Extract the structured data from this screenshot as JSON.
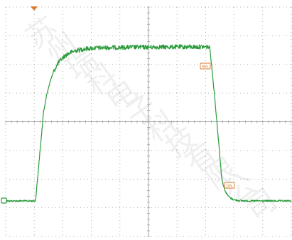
{
  "scope": {
    "background": "#ffffff",
    "grid_color": "#9a9a9a",
    "trace_color": "#2a9a3a",
    "marker_color": "#d97a2a",
    "trigger_marker_icon": "triangle-down-icon",
    "ground_marker_icon": "ground-reference-icon",
    "cursor_90_label": "90%",
    "cursor_10_label": "10%",
    "watermark_text": "苏州瑞科电子科技有限公司"
  }
}
